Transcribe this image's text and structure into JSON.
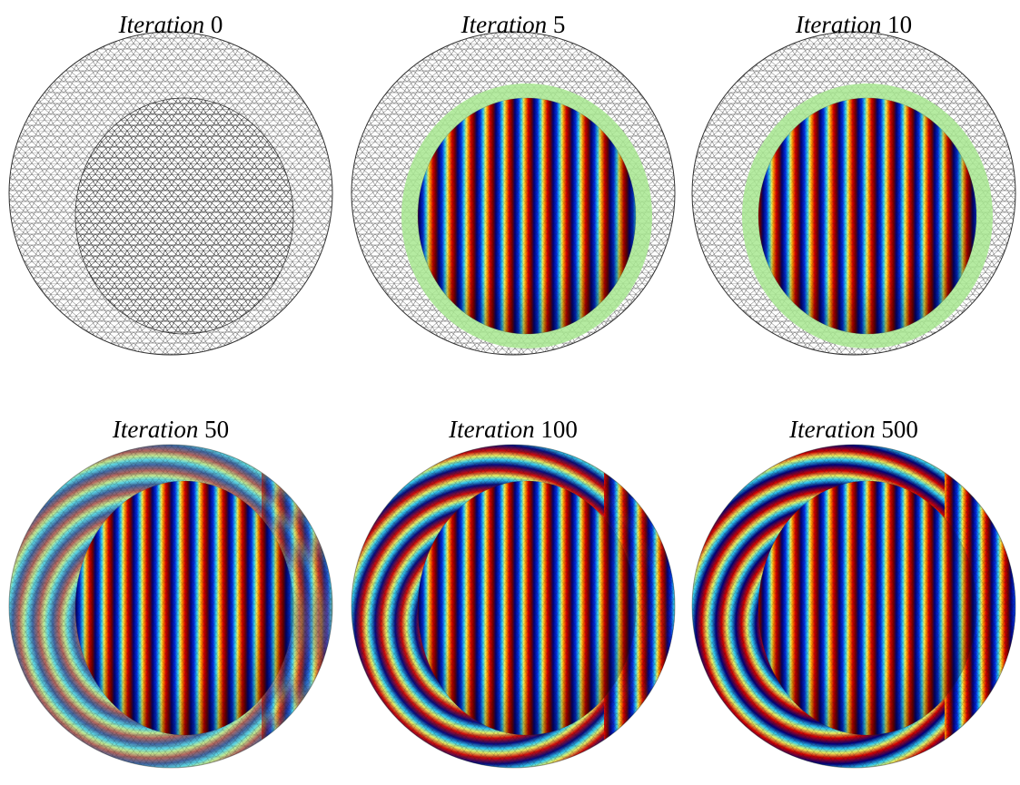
{
  "panels": [
    {
      "label": "Iteration",
      "iteration": "0"
    },
    {
      "label": "Iteration",
      "iteration": "5"
    },
    {
      "label": "Iteration",
      "iteration": "10"
    },
    {
      "label": "Iteration",
      "iteration": "50"
    },
    {
      "label": "Iteration",
      "iteration": "100"
    },
    {
      "label": "Iteration",
      "iteration": "500"
    }
  ]
}
